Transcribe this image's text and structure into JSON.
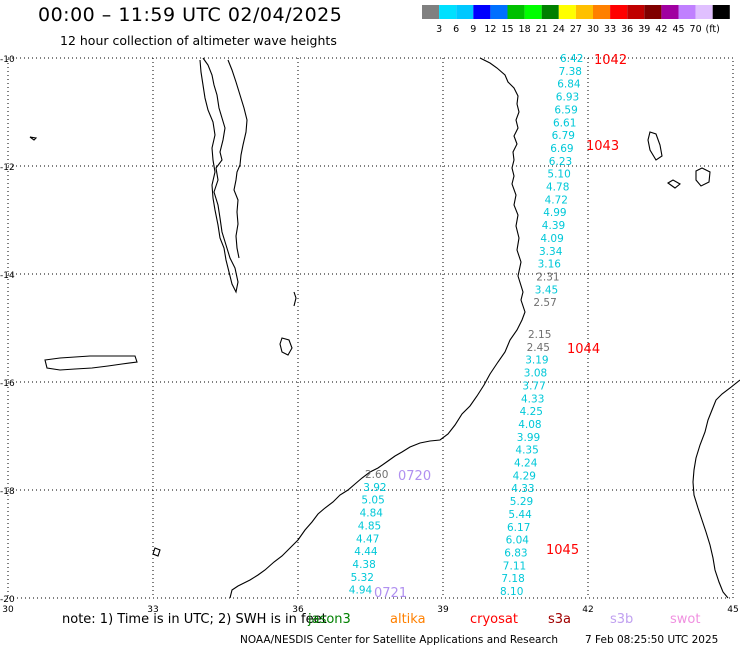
{
  "header": {
    "title": "00:00 – 11:59 UTC 02/04/2025",
    "subtitle": "12 hour collection of altimeter wave heights"
  },
  "colorbar": {
    "colors": [
      "#808080",
      "#00e0ff",
      "#00c8ff",
      "#0000ff",
      "#0070ff",
      "#00c000",
      "#00ff00",
      "#008000",
      "#ffff00",
      "#ffc000",
      "#ff8000",
      "#ff0000",
      "#c00000",
      "#800000",
      "#a000a0",
      "#c080ff",
      "#e0c0ff",
      "#000000"
    ],
    "labels": [
      "3",
      "6",
      "9",
      "12",
      "15",
      "18",
      "21",
      "24",
      "27",
      "30",
      "33",
      "36",
      "39",
      "42",
      "45",
      "70",
      "(ft)"
    ]
  },
  "map": {
    "lon_range": [
      30,
      45
    ],
    "lat_range": [
      -20,
      -10
    ],
    "lon_ticks": [
      "30",
      "33",
      "36",
      "39",
      "42",
      "45"
    ],
    "lat_ticks": [
      "-10",
      "-12",
      "-14",
      "-16",
      "-18",
      "-20"
    ],
    "grid": "dotted"
  },
  "tracks": [
    {
      "label": "1042",
      "color": "#ff0000",
      "values": [
        {
          "v": "6.42",
          "c": "#00c8d8"
        },
        {
          "v": "7.38",
          "c": "#00c8d8"
        },
        {
          "v": "6.84",
          "c": "#00c8d8"
        },
        {
          "v": "6.93",
          "c": "#00c8d8"
        },
        {
          "v": "6.59",
          "c": "#00c8d8"
        },
        {
          "v": "6.61",
          "c": "#00c8d8"
        },
        {
          "v": "6.79",
          "c": "#00c8d8"
        },
        {
          "v": "6.69",
          "c": "#00c8d8"
        },
        {
          "v": "6.23",
          "c": "#00c8d8"
        },
        {
          "v": "5.10",
          "c": "#00c8d8"
        },
        {
          "v": "4.78",
          "c": "#00c8d8"
        },
        {
          "v": "4.72",
          "c": "#00c8d8"
        },
        {
          "v": "4.99",
          "c": "#00c8d8"
        },
        {
          "v": "4.39",
          "c": "#00c8d8"
        },
        {
          "v": "4.09",
          "c": "#00c8d8"
        },
        {
          "v": "3.34",
          "c": "#00c8d8"
        },
        {
          "v": "3.16",
          "c": "#00c8d8"
        },
        {
          "v": "2.31",
          "c": "#707070"
        },
        {
          "v": "3.45",
          "c": "#00c8d8"
        },
        {
          "v": "2.57",
          "c": "#707070"
        }
      ]
    },
    {
      "label": "1043",
      "color": "#ff0000",
      "values": []
    },
    {
      "label": "1044",
      "color": "#ff0000",
      "values": [
        {
          "v": "2.15",
          "c": "#707070"
        },
        {
          "v": "2.45",
          "c": "#707070"
        },
        {
          "v": "3.19",
          "c": "#00c8d8"
        },
        {
          "v": "3.08",
          "c": "#00c8d8"
        },
        {
          "v": "3.77",
          "c": "#00c8d8"
        },
        {
          "v": "4.33",
          "c": "#00c8d8"
        },
        {
          "v": "4.25",
          "c": "#00c8d8"
        },
        {
          "v": "4.08",
          "c": "#00c8d8"
        },
        {
          "v": "3.99",
          "c": "#00c8d8"
        },
        {
          "v": "4.35",
          "c": "#00c8d8"
        },
        {
          "v": "4.24",
          "c": "#00c8d8"
        },
        {
          "v": "4.29",
          "c": "#00c8d8"
        },
        {
          "v": "4.33",
          "c": "#00c8d8"
        },
        {
          "v": "5.29",
          "c": "#00c8d8"
        },
        {
          "v": "5.44",
          "c": "#00c8d8"
        },
        {
          "v": "6.17",
          "c": "#00c8d8"
        },
        {
          "v": "6.04",
          "c": "#00c8d8"
        },
        {
          "v": "6.83",
          "c": "#00c8d8"
        },
        {
          "v": "7.11",
          "c": "#00c8d8"
        },
        {
          "v": "7.18",
          "c": "#00c8d8"
        },
        {
          "v": "8.10",
          "c": "#00c8d8"
        }
      ]
    },
    {
      "label": "1045",
      "color": "#ff0000",
      "values": []
    },
    {
      "label": "0720",
      "color": "#b090f0",
      "values": [
        {
          "v": "2.60",
          "c": "#707070"
        },
        {
          "v": "3.92",
          "c": "#00c8d8"
        },
        {
          "v": "5.05",
          "c": "#00c8d8"
        },
        {
          "v": "4.84",
          "c": "#00c8d8"
        },
        {
          "v": "4.85",
          "c": "#00c8d8"
        },
        {
          "v": "4.47",
          "c": "#00c8d8"
        },
        {
          "v": "4.44",
          "c": "#00c8d8"
        },
        {
          "v": "4.38",
          "c": "#00c8d8"
        },
        {
          "v": "5.32",
          "c": "#00c8d8"
        },
        {
          "v": "4.94",
          "c": "#00c8d8"
        }
      ]
    },
    {
      "label": "0721",
      "color": "#b090f0",
      "values": []
    }
  ],
  "footer": {
    "note": "note: 1) Time is in UTC; 2) SWH is in feet",
    "satellites": [
      {
        "name": "jason3",
        "color": "#008000"
      },
      {
        "name": "altika",
        "color": "#ff8000"
      },
      {
        "name": "cryosat",
        "color": "#ff0000"
      },
      {
        "name": "s3a",
        "color": "#a00000"
      },
      {
        "name": "s3b",
        "color": "#c0a0f0"
      },
      {
        "name": "swot",
        "color": "#f090e0"
      }
    ],
    "credit": "NOAA/NESDIS Center for Satellite Applications and Research",
    "timestamp": "7 Feb 08:25:50 UTC 2025"
  }
}
